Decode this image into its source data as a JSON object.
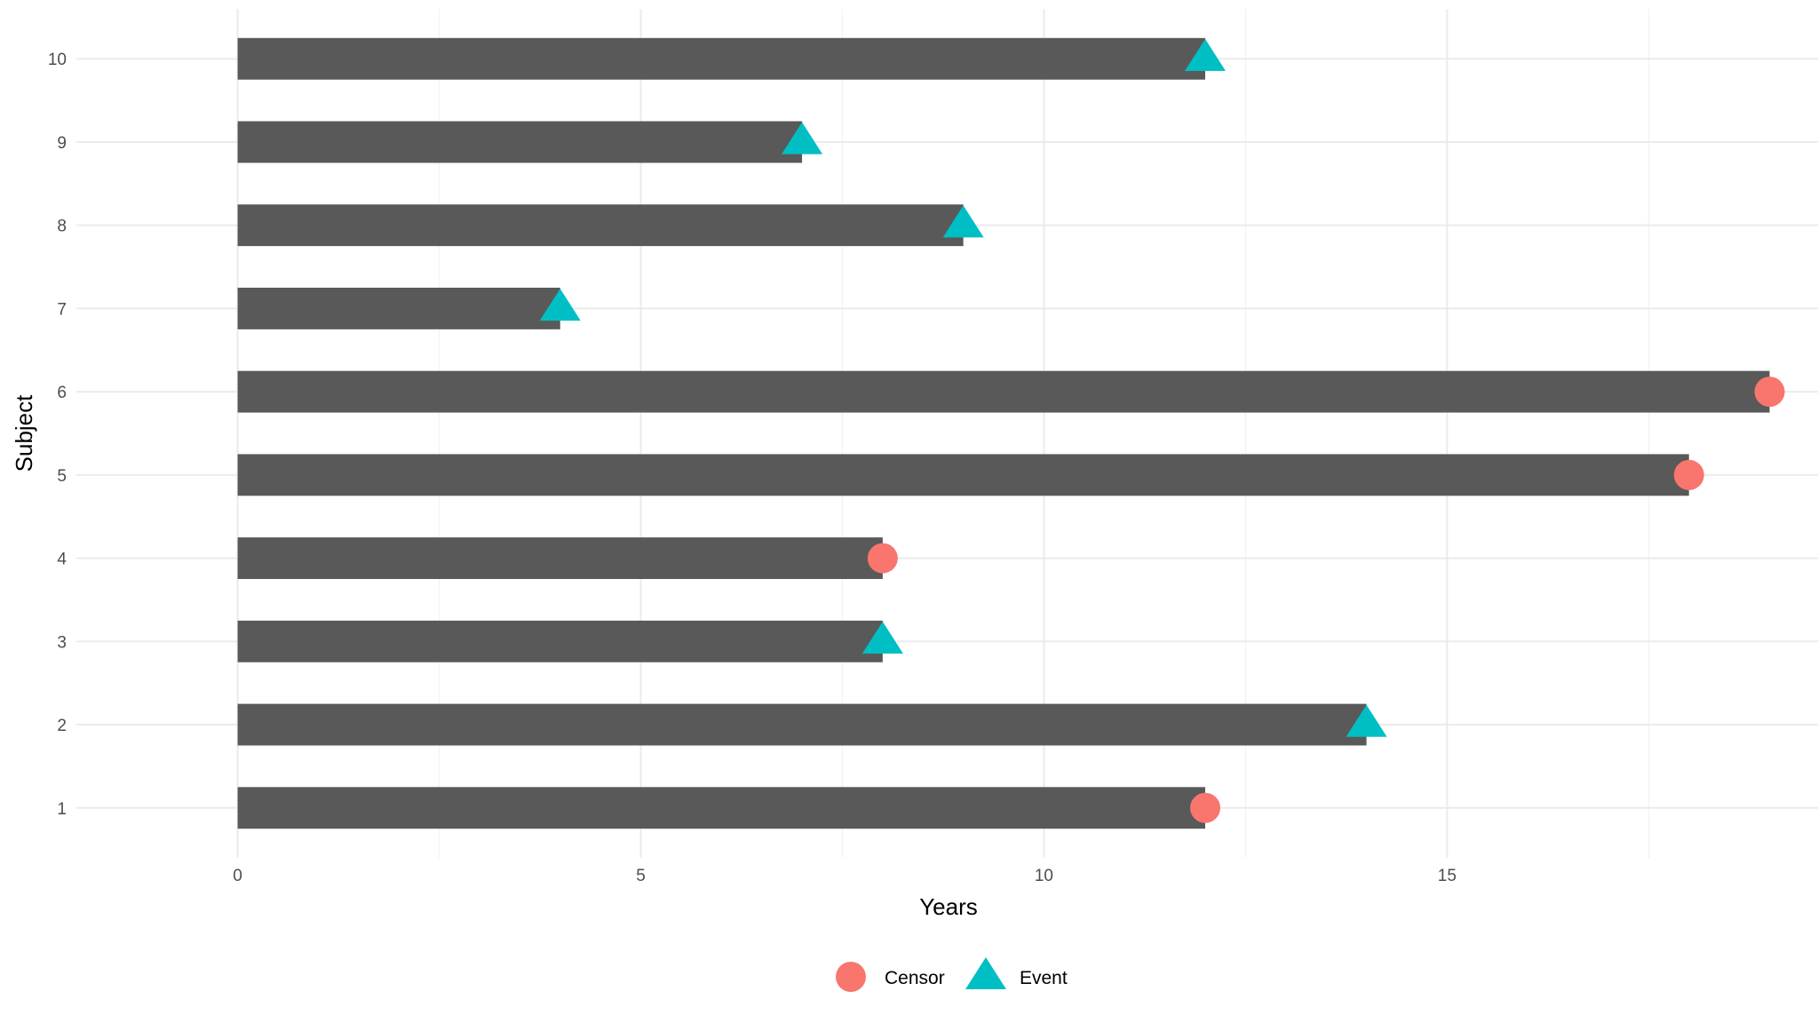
{
  "chart_data": {
    "type": "bar",
    "orientation": "horizontal",
    "xlabel": "Years",
    "ylabel": "Subject",
    "xlim": [
      -2,
      19.6
    ],
    "ylim": [
      0.4,
      10.6
    ],
    "x_ticks": [
      0,
      5,
      10,
      15
    ],
    "x_tick_labels": [
      "0",
      "5",
      "10",
      "15"
    ],
    "categories": [
      "1",
      "2",
      "3",
      "4",
      "5",
      "6",
      "7",
      "8",
      "9",
      "10"
    ],
    "bar_color": "#595959",
    "grid": true,
    "series": [
      {
        "name": "Years",
        "values": [
          12,
          14,
          8,
          8,
          18,
          19,
          4,
          9,
          7,
          12
        ]
      }
    ],
    "point_series": [
      {
        "subject": "1",
        "x": 12,
        "status": "Censor"
      },
      {
        "subject": "2",
        "x": 14,
        "status": "Event"
      },
      {
        "subject": "3",
        "x": 8,
        "status": "Event"
      },
      {
        "subject": "4",
        "x": 8,
        "status": "Censor"
      },
      {
        "subject": "5",
        "x": 18,
        "status": "Censor"
      },
      {
        "subject": "6",
        "x": 19,
        "status": "Censor"
      },
      {
        "subject": "7",
        "x": 4,
        "status": "Event"
      },
      {
        "subject": "8",
        "x": 9,
        "status": "Event"
      },
      {
        "subject": "9",
        "x": 7,
        "status": "Event"
      },
      {
        "subject": "10",
        "x": 12,
        "status": "Event"
      }
    ],
    "legend": {
      "position": "bottom",
      "items": [
        {
          "label": "Censor",
          "shape": "circle",
          "color": "#F8766D"
        },
        {
          "label": "Event",
          "shape": "triangle",
          "color": "#00BFC4"
        }
      ]
    }
  }
}
